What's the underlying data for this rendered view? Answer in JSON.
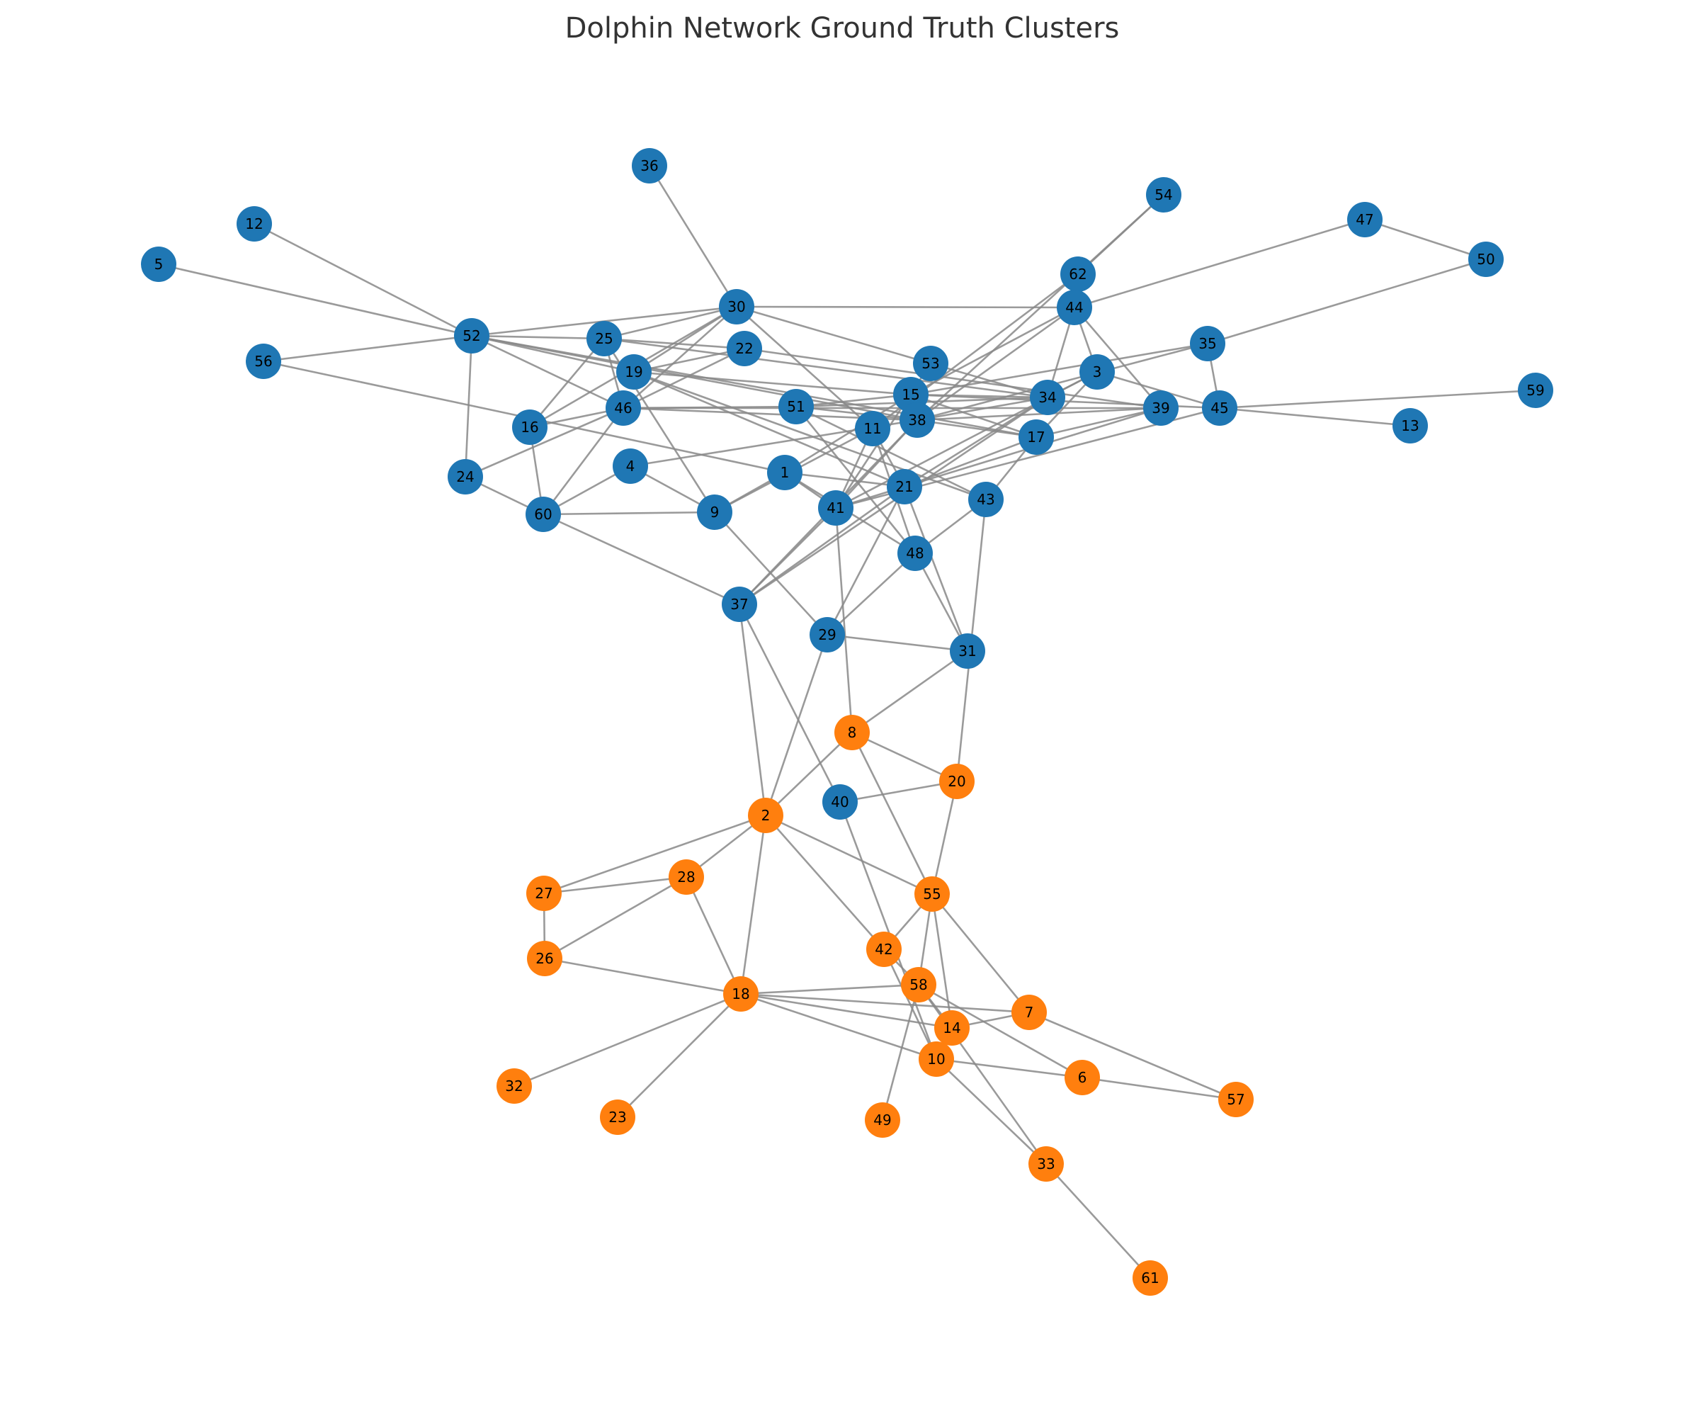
{
  "title": "Dolphin Network Ground Truth Clusters",
  "colors": {
    "cluster_blue": "#1f77b4",
    "cluster_orange": "#ff7f0e",
    "edge": "#888888",
    "title_text": "#333333",
    "label_text": "#000000"
  },
  "nodes": [
    {
      "id": "5",
      "cluster": "blue"
    },
    {
      "id": "12",
      "cluster": "blue"
    },
    {
      "id": "36",
      "cluster": "blue"
    },
    {
      "id": "54",
      "cluster": "blue"
    },
    {
      "id": "47",
      "cluster": "blue"
    },
    {
      "id": "50",
      "cluster": "blue"
    },
    {
      "id": "62",
      "cluster": "blue"
    },
    {
      "id": "30",
      "cluster": "blue"
    },
    {
      "id": "44",
      "cluster": "blue"
    },
    {
      "id": "52",
      "cluster": "blue"
    },
    {
      "id": "25",
      "cluster": "blue"
    },
    {
      "id": "22",
      "cluster": "blue"
    },
    {
      "id": "56",
      "cluster": "blue"
    },
    {
      "id": "35",
      "cluster": "blue"
    },
    {
      "id": "53",
      "cluster": "blue"
    },
    {
      "id": "19",
      "cluster": "blue"
    },
    {
      "id": "3",
      "cluster": "blue"
    },
    {
      "id": "15",
      "cluster": "blue"
    },
    {
      "id": "59",
      "cluster": "blue"
    },
    {
      "id": "34",
      "cluster": "blue"
    },
    {
      "id": "46",
      "cluster": "blue"
    },
    {
      "id": "51",
      "cluster": "blue"
    },
    {
      "id": "39",
      "cluster": "blue"
    },
    {
      "id": "45",
      "cluster": "blue"
    },
    {
      "id": "38",
      "cluster": "blue"
    },
    {
      "id": "16",
      "cluster": "blue"
    },
    {
      "id": "11",
      "cluster": "blue"
    },
    {
      "id": "13",
      "cluster": "blue"
    },
    {
      "id": "17",
      "cluster": "blue"
    },
    {
      "id": "4",
      "cluster": "blue"
    },
    {
      "id": "1",
      "cluster": "blue"
    },
    {
      "id": "24",
      "cluster": "blue"
    },
    {
      "id": "21",
      "cluster": "blue"
    },
    {
      "id": "43",
      "cluster": "blue"
    },
    {
      "id": "60",
      "cluster": "blue"
    },
    {
      "id": "9",
      "cluster": "blue"
    },
    {
      "id": "41",
      "cluster": "blue"
    },
    {
      "id": "48",
      "cluster": "blue"
    },
    {
      "id": "37",
      "cluster": "blue"
    },
    {
      "id": "29",
      "cluster": "blue"
    },
    {
      "id": "31",
      "cluster": "blue"
    },
    {
      "id": "40",
      "cluster": "blue"
    },
    {
      "id": "8",
      "cluster": "orange"
    },
    {
      "id": "20",
      "cluster": "orange"
    },
    {
      "id": "2",
      "cluster": "orange"
    },
    {
      "id": "28",
      "cluster": "orange"
    },
    {
      "id": "27",
      "cluster": "orange"
    },
    {
      "id": "55",
      "cluster": "orange"
    },
    {
      "id": "26",
      "cluster": "orange"
    },
    {
      "id": "42",
      "cluster": "orange"
    },
    {
      "id": "58",
      "cluster": "orange"
    },
    {
      "id": "18",
      "cluster": "orange"
    },
    {
      "id": "7",
      "cluster": "orange"
    },
    {
      "id": "14",
      "cluster": "orange"
    },
    {
      "id": "10",
      "cluster": "orange"
    },
    {
      "id": "6",
      "cluster": "orange"
    },
    {
      "id": "57",
      "cluster": "orange"
    },
    {
      "id": "32",
      "cluster": "orange"
    },
    {
      "id": "23",
      "cluster": "orange"
    },
    {
      "id": "49",
      "cluster": "orange"
    },
    {
      "id": "33",
      "cluster": "orange"
    },
    {
      "id": "61",
      "cluster": "orange"
    }
  ],
  "edges": [
    [
      "5",
      "52"
    ],
    [
      "12",
      "52"
    ],
    [
      "56",
      "52"
    ],
    [
      "52",
      "30"
    ],
    [
      "52",
      "25"
    ],
    [
      "52",
      "19"
    ],
    [
      "52",
      "46"
    ],
    [
      "52",
      "24"
    ],
    [
      "52",
      "38"
    ],
    [
      "52",
      "17"
    ],
    [
      "36",
      "30"
    ],
    [
      "30",
      "44"
    ],
    [
      "30",
      "25"
    ],
    [
      "30",
      "19"
    ],
    [
      "30",
      "16"
    ],
    [
      "30",
      "46"
    ],
    [
      "30",
      "11"
    ],
    [
      "30",
      "53"
    ],
    [
      "54",
      "62"
    ],
    [
      "54",
      "38"
    ],
    [
      "62",
      "11"
    ],
    [
      "44",
      "47"
    ],
    [
      "47",
      "50"
    ],
    [
      "50",
      "35"
    ],
    [
      "44",
      "15"
    ],
    [
      "44",
      "38"
    ],
    [
      "44",
      "34"
    ],
    [
      "44",
      "3"
    ],
    [
      "44",
      "39"
    ],
    [
      "25",
      "22"
    ],
    [
      "25",
      "16"
    ],
    [
      "25",
      "46"
    ],
    [
      "25",
      "9"
    ],
    [
      "25",
      "34"
    ],
    [
      "22",
      "46"
    ],
    [
      "22",
      "19"
    ],
    [
      "22",
      "39"
    ],
    [
      "19",
      "15"
    ],
    [
      "19",
      "21"
    ],
    [
      "19",
      "43"
    ],
    [
      "56",
      "1"
    ],
    [
      "16",
      "46"
    ],
    [
      "16",
      "60"
    ],
    [
      "24",
      "46"
    ],
    [
      "24",
      "60"
    ],
    [
      "46",
      "60"
    ],
    [
      "46",
      "51"
    ],
    [
      "46",
      "38"
    ],
    [
      "46",
      "39"
    ],
    [
      "51",
      "15"
    ],
    [
      "51",
      "48"
    ],
    [
      "51",
      "43"
    ],
    [
      "51",
      "38"
    ],
    [
      "51",
      "34"
    ],
    [
      "53",
      "34"
    ],
    [
      "53",
      "41"
    ],
    [
      "15",
      "34"
    ],
    [
      "15",
      "17"
    ],
    [
      "15",
      "1"
    ],
    [
      "15",
      "38"
    ],
    [
      "15",
      "45"
    ],
    [
      "3",
      "34"
    ],
    [
      "3",
      "45"
    ],
    [
      "3",
      "41"
    ],
    [
      "3",
      "17"
    ],
    [
      "35",
      "38"
    ],
    [
      "35",
      "45"
    ],
    [
      "35",
      "15"
    ],
    [
      "34",
      "38"
    ],
    [
      "34",
      "21"
    ],
    [
      "34",
      "37"
    ],
    [
      "39",
      "38"
    ],
    [
      "39",
      "21"
    ],
    [
      "39",
      "17"
    ],
    [
      "45",
      "59"
    ],
    [
      "45",
      "13"
    ],
    [
      "45",
      "41"
    ],
    [
      "38",
      "41"
    ],
    [
      "38",
      "17"
    ],
    [
      "38",
      "4"
    ],
    [
      "38",
      "37"
    ],
    [
      "11",
      "21"
    ],
    [
      "11",
      "48"
    ],
    [
      "11",
      "9"
    ],
    [
      "11",
      "41"
    ],
    [
      "17",
      "43"
    ],
    [
      "17",
      "21"
    ],
    [
      "1",
      "41"
    ],
    [
      "1",
      "21"
    ],
    [
      "1",
      "9"
    ],
    [
      "1",
      "48"
    ],
    [
      "21",
      "29"
    ],
    [
      "21",
      "37"
    ],
    [
      "21",
      "41"
    ],
    [
      "21",
      "31"
    ],
    [
      "43",
      "48"
    ],
    [
      "43",
      "20"
    ],
    [
      "4",
      "60"
    ],
    [
      "4",
      "9"
    ],
    [
      "60",
      "9"
    ],
    [
      "60",
      "37"
    ],
    [
      "9",
      "29"
    ],
    [
      "41",
      "37"
    ],
    [
      "41",
      "8"
    ],
    [
      "48",
      "29"
    ],
    [
      "48",
      "31"
    ],
    [
      "37",
      "2"
    ],
    [
      "37",
      "40"
    ],
    [
      "29",
      "31"
    ],
    [
      "29",
      "2"
    ],
    [
      "31",
      "8"
    ],
    [
      "8",
      "20"
    ],
    [
      "8",
      "2"
    ],
    [
      "8",
      "55"
    ],
    [
      "20",
      "40"
    ],
    [
      "20",
      "55"
    ],
    [
      "2",
      "27"
    ],
    [
      "2",
      "28"
    ],
    [
      "2",
      "18"
    ],
    [
      "2",
      "55"
    ],
    [
      "2",
      "42"
    ],
    [
      "28",
      "27"
    ],
    [
      "28",
      "26"
    ],
    [
      "28",
      "18"
    ],
    [
      "27",
      "26"
    ],
    [
      "26",
      "18"
    ],
    [
      "40",
      "10"
    ],
    [
      "55",
      "42"
    ],
    [
      "55",
      "58"
    ],
    [
      "55",
      "14"
    ],
    [
      "55",
      "7"
    ],
    [
      "42",
      "58"
    ],
    [
      "42",
      "10"
    ],
    [
      "58",
      "18"
    ],
    [
      "58",
      "14"
    ],
    [
      "58",
      "6"
    ],
    [
      "58",
      "33"
    ],
    [
      "58",
      "49"
    ],
    [
      "18",
      "14"
    ],
    [
      "18",
      "10"
    ],
    [
      "18",
      "7"
    ],
    [
      "18",
      "32"
    ],
    [
      "18",
      "23"
    ],
    [
      "7",
      "14"
    ],
    [
      "7",
      "57"
    ],
    [
      "14",
      "10"
    ],
    [
      "10",
      "6"
    ],
    [
      "10",
      "33"
    ],
    [
      "6",
      "57"
    ],
    [
      "33",
      "61"
    ]
  ]
}
